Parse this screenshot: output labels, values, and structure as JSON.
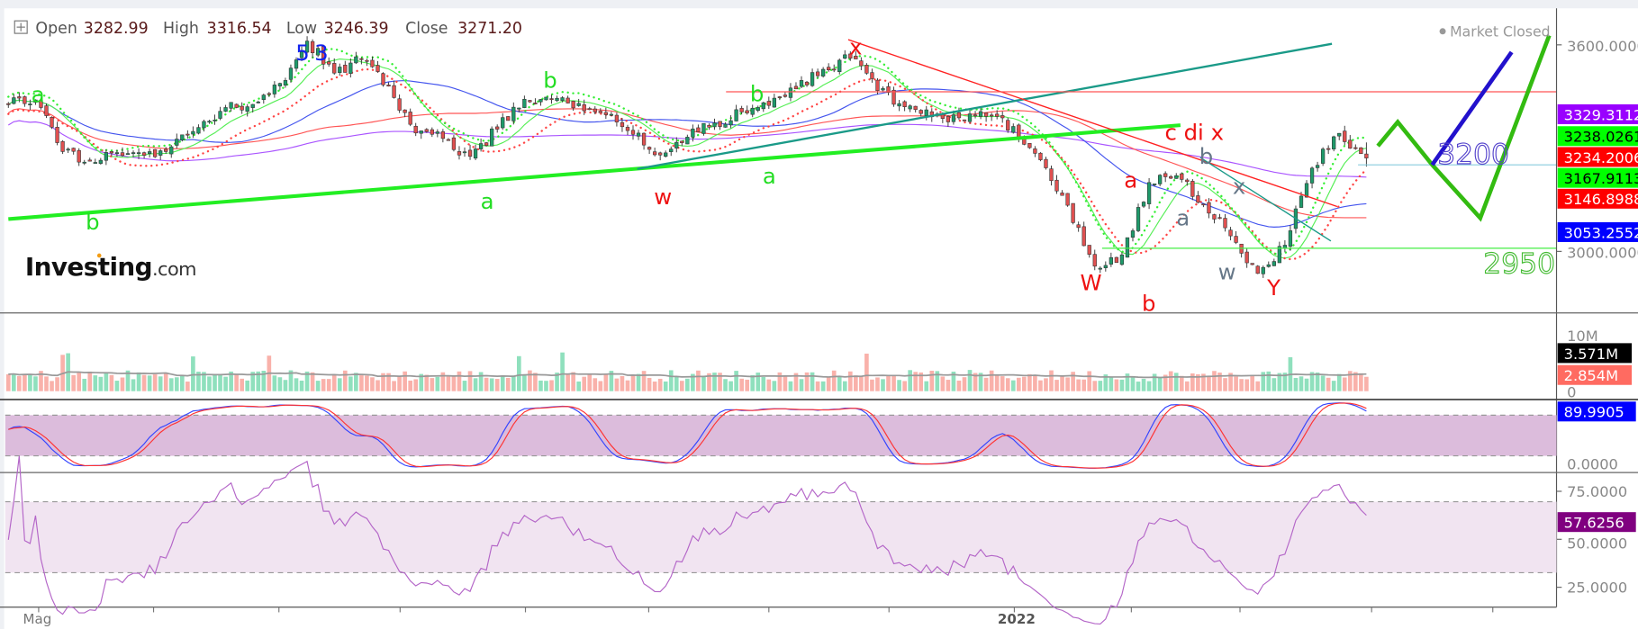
{
  "header": {
    "open_label": "Open",
    "open_value": "3282.99",
    "high_label": "High",
    "high_value": "3316.54",
    "low_label": "Low",
    "low_value": "3246.39",
    "close_label": "Close",
    "close_value": "3271.20",
    "expand_icon": "plus-square-icon"
  },
  "market_status": "Market Closed",
  "logo": {
    "brand": "Investing",
    "suffix": ".com"
  },
  "price_axis": {
    "ticks": [
      "3600.0000",
      "3000.0000"
    ]
  },
  "price_tags": [
    {
      "value": "3329.3112",
      "bg": "#9900ff",
      "fg": "#ffffff"
    },
    {
      "value": "3238.0261",
      "bg": "#00ff00",
      "fg": "#000000"
    },
    {
      "value": "3234.2006",
      "bg": "#ff0000",
      "fg": "#ffffff"
    },
    {
      "value": "3167.9113",
      "bg": "#00ff00",
      "fg": "#000000"
    },
    {
      "value": "3146.8988",
      "bg": "#ff0000",
      "fg": "#ffffff"
    },
    {
      "value": "3053.2552",
      "bg": "#0000ff",
      "fg": "#ffffff"
    }
  ],
  "volume_axis": {
    "ticks": [
      "10M",
      "0"
    ]
  },
  "volume_tags": [
    {
      "value": "3.571M",
      "bg": "#000000",
      "fg": "#ffffff"
    },
    {
      "value": "2.854M",
      "bg": "#ff6b61",
      "fg": "#ffffff"
    }
  ],
  "stoch_axis": {
    "ticks": [
      "0.0000"
    ]
  },
  "stoch_tag": {
    "value": "89.9905",
    "bg": "#0000ff",
    "fg": "#ffffff"
  },
  "rsi_axis": {
    "ticks": [
      "75.0000",
      "50.0000",
      "25.0000"
    ]
  },
  "rsi_tag": {
    "value": "57.6256",
    "bg": "#800080",
    "fg": "#ffffff"
  },
  "time_axis": {
    "labels": [
      "Mag",
      "2022"
    ]
  },
  "waves": [
    {
      "text": "a",
      "color": "#22dd22"
    },
    {
      "text": "b",
      "color": "#22dd22"
    },
    {
      "text": "a",
      "color": "#22dd22"
    },
    {
      "text": "b",
      "color": "#22dd22"
    },
    {
      "text": "a",
      "color": "#22dd22"
    },
    {
      "text": "b",
      "color": "#22dd22"
    },
    {
      "text": "w",
      "color": "#ee1111"
    },
    {
      "text": "x",
      "color": "#ee1111"
    },
    {
      "text": "W",
      "color": "#ee1111"
    },
    {
      "text": "a",
      "color": "#ee1111"
    },
    {
      "text": "b",
      "color": "#ee1111"
    },
    {
      "text": "c di x",
      "color": "#ee1111"
    },
    {
      "text": "Y",
      "color": "#ee1111"
    },
    {
      "text": "b",
      "color": "#667788"
    },
    {
      "text": "x",
      "color": "#667788"
    },
    {
      "text": "a",
      "color": "#667788"
    },
    {
      "text": "w",
      "color": "#667788"
    },
    {
      "text": "5",
      "color": "#1122ee"
    },
    {
      "text": "3",
      "color": "#1122ee"
    }
  ],
  "forecast": {
    "level_high": "3200",
    "level_low": "2950"
  },
  "colors": {
    "up": "#1e9a6a",
    "down": "#e05050",
    "sma_fast": "#55ee55",
    "sma_mid": "#4455ee",
    "sma_slow": "#ff5555",
    "sma_long": "#aa55ff"
  },
  "chart_data": {
    "type": "candlestick",
    "symbol_ohlc_last": {
      "open": 3282.99,
      "high": 3316.54,
      "low": 3246.39,
      "close": 3271.2
    },
    "closes_sampled": [
      3427,
      3440,
      3290,
      3262,
      3287,
      3279,
      3304,
      3360,
      3418,
      3427,
      3488,
      3611,
      3518,
      3558,
      3480,
      3344,
      3328,
      3276,
      3355,
      3442,
      3442,
      3430,
      3397,
      3340,
      3280,
      3332,
      3373,
      3405,
      3424,
      3472,
      3529,
      3561,
      3467,
      3420,
      3391,
      3388,
      3392,
      3363,
      3266,
      3134,
      2957,
      2990,
      3200,
      3220,
      3136,
      3045,
      2936,
      3018,
      3242,
      3343,
      3271
    ],
    "ylim": [
      2880,
      3680
    ],
    "panes": [
      "price",
      "volume",
      "stochastic",
      "rsi"
    ],
    "stoch_band": [
      20,
      80
    ],
    "rsi_band": [
      30,
      70
    ],
    "grid": false
  }
}
